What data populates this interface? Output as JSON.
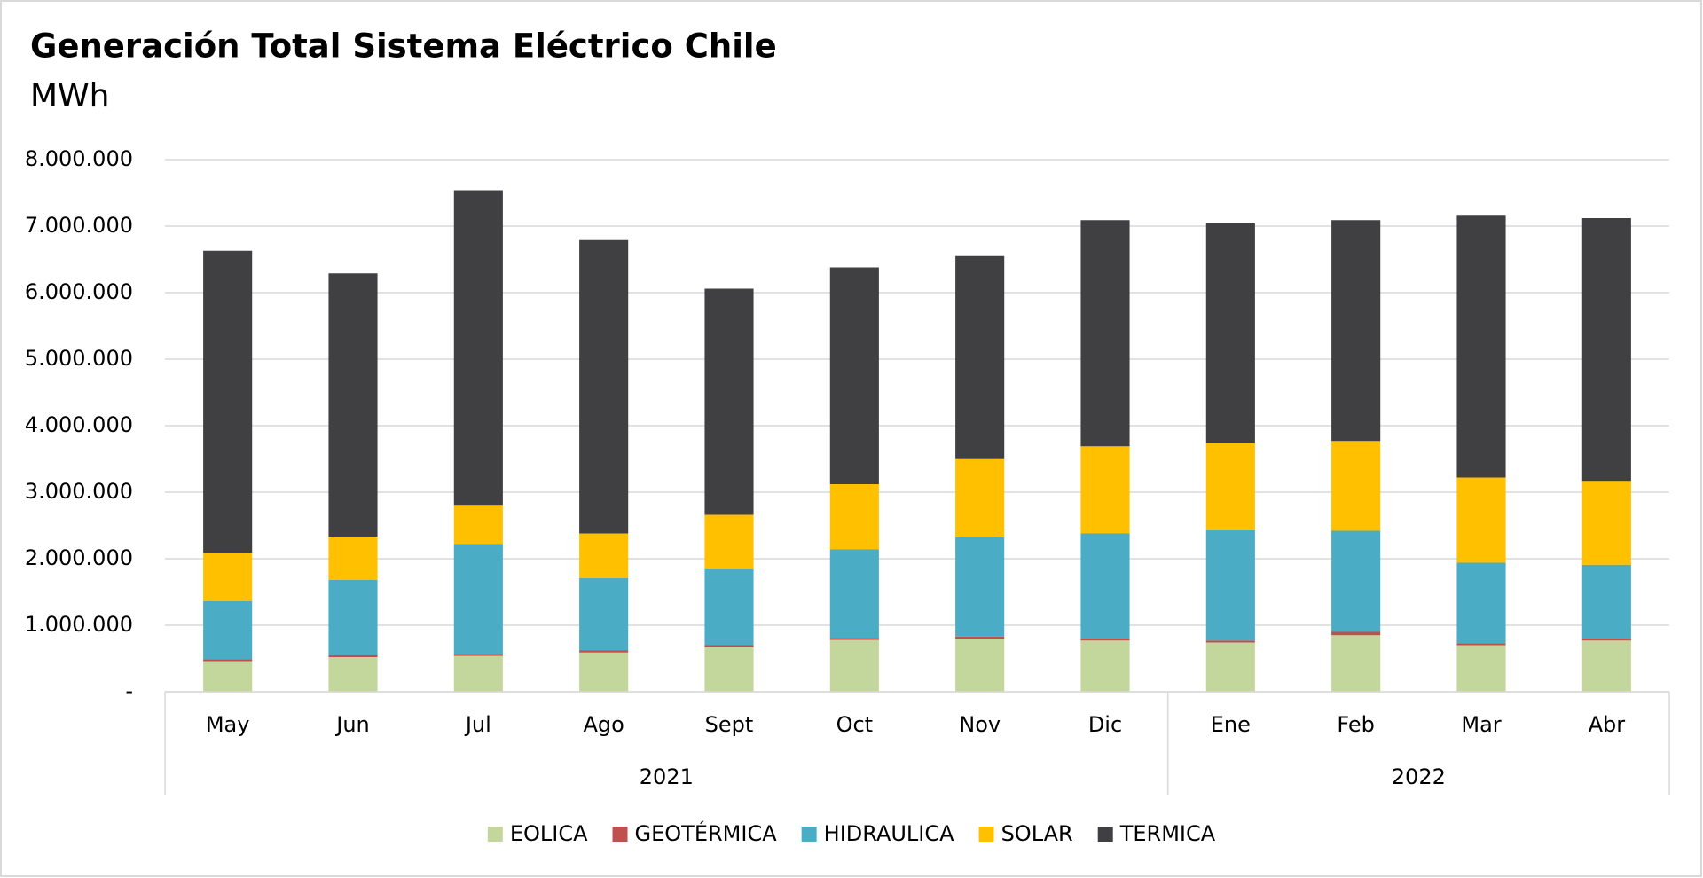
{
  "chart_data": {
    "type": "stacked-bar",
    "title": "Generación Total Sistema Eléctrico Chile",
    "subtitle": "MWh",
    "category_groups": [
      {
        "name": "2021",
        "categories": [
          "May",
          "Jun",
          "Jul",
          "Ago",
          "Sept",
          "Oct",
          "Nov",
          "Dic"
        ]
      },
      {
        "name": "2022",
        "categories": [
          "Ene",
          "Feb",
          "Mar",
          "Abr"
        ]
      }
    ],
    "series": [
      {
        "name": "EOLICA",
        "color": "#c3d69b",
        "values": [
          460000,
          520000,
          540000,
          590000,
          670000,
          780000,
          800000,
          770000,
          740000,
          850000,
          700000,
          770000
        ]
      },
      {
        "name": "GEOTÉRMICA",
        "color": "#c0504d",
        "values": [
          30000,
          30000,
          30000,
          30000,
          30000,
          30000,
          30000,
          30000,
          30000,
          50000,
          30000,
          30000
        ]
      },
      {
        "name": "HIDRAULICA",
        "color": "#4bacc6",
        "values": [
          870000,
          1130000,
          1650000,
          1090000,
          1140000,
          1330000,
          1490000,
          1580000,
          1660000,
          1520000,
          1210000,
          1110000
        ]
      },
      {
        "name": "SOLAR",
        "color": "#ffc000",
        "values": [
          730000,
          650000,
          590000,
          670000,
          820000,
          980000,
          1190000,
          1310000,
          1310000,
          1350000,
          1280000,
          1260000
        ]
      },
      {
        "name": "TERMICA",
        "color": "#403f42",
        "values": [
          4540000,
          3960000,
          4730000,
          4410000,
          3400000,
          3260000,
          3040000,
          3400000,
          3300000,
          3320000,
          3950000,
          3950000
        ]
      }
    ],
    "ylim": [
      0,
      8000000
    ],
    "yticks": [
      {
        "value": 0,
        "label": "-"
      },
      {
        "value": 1000000,
        "label": "1.000.000"
      },
      {
        "value": 2000000,
        "label": "2.000.000"
      },
      {
        "value": 3000000,
        "label": "3.000.000"
      },
      {
        "value": 4000000,
        "label": "4.000.000"
      },
      {
        "value": 5000000,
        "label": "5.000.000"
      },
      {
        "value": 6000000,
        "label": "6.000.000"
      },
      {
        "value": 7000000,
        "label": "7.000.000"
      },
      {
        "value": 8000000,
        "label": "8.000.000"
      }
    ],
    "grid": true,
    "legend": "bottom"
  }
}
